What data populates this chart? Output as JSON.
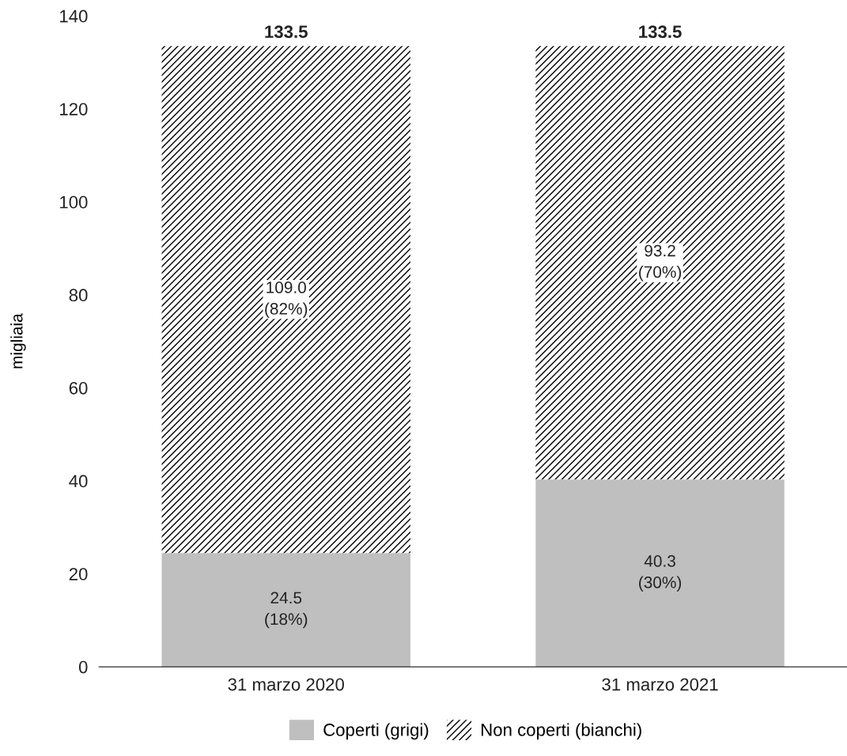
{
  "chart_data": {
    "type": "bar",
    "stacked": true,
    "ylabel": "migliaia",
    "categories": [
      "31 marzo 2020",
      "31 marzo 2021"
    ],
    "series": [
      {
        "name": "Coperti (grigi)",
        "color": "#bfbfbf",
        "values": [
          24.5,
          40.3
        ],
        "value_labels": [
          "24.5\n(18%)",
          "40.3\n(30%)"
        ]
      },
      {
        "name": "Non coperti (bianchi)",
        "color": "#ffffff",
        "values": [
          109.0,
          93.2
        ],
        "value_labels": [
          "109.0\n(82%)",
          "93.2\n(70%)"
        ]
      }
    ],
    "totals": [
      "133.5",
      "133.5"
    ],
    "ylim": [
      0,
      140
    ],
    "yticks": [
      0,
      20,
      40,
      60,
      80,
      100,
      120,
      140
    ],
    "grid": false,
    "legend": "bottom"
  }
}
